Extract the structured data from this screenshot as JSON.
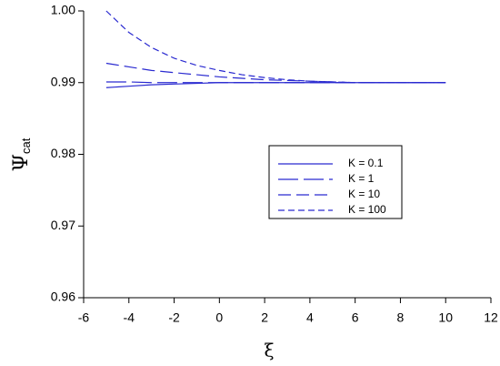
{
  "chart_data": {
    "type": "line",
    "x_label": "ξ",
    "y_label": {
      "symbol": "Ψ",
      "subscript": "cat"
    },
    "x": [
      -5,
      -4,
      -3,
      -2,
      -1,
      0,
      1,
      2,
      3,
      4,
      5,
      6,
      7,
      8,
      9,
      10
    ],
    "series": [
      {
        "name": "K = 0.1",
        "color": "#2a2ad0",
        "dash": "none",
        "values": [
          0.9893,
          0.9895,
          0.9897,
          0.9898,
          0.9899,
          0.99,
          0.99,
          0.99,
          0.99,
          0.99,
          0.99,
          0.99,
          0.99,
          0.99,
          0.99,
          0.99
        ]
      },
      {
        "name": "K = 1",
        "color": "#2a2ad0",
        "dash": "22 6",
        "values": [
          0.9901,
          0.9901,
          0.99,
          0.99,
          0.99,
          0.99,
          0.99,
          0.99,
          0.99,
          0.99,
          0.99,
          0.99,
          0.99,
          0.99,
          0.99,
          0.99
        ]
      },
      {
        "name": "K = 10",
        "color": "#2a2ad0",
        "dash": "14 6",
        "values": [
          0.9927,
          0.9922,
          0.9917,
          0.9914,
          0.9911,
          0.9908,
          0.9906,
          0.9904,
          0.9903,
          0.9902,
          0.9901,
          0.99,
          0.99,
          0.99,
          0.99,
          0.99
        ]
      },
      {
        "name": "K = 100",
        "color": "#2a2ad0",
        "dash": "7 4",
        "values": [
          1.0,
          0.997,
          0.9949,
          0.9934,
          0.9924,
          0.9917,
          0.9911,
          0.9907,
          0.9904,
          0.9902,
          0.9901,
          0.99,
          0.99,
          0.99,
          0.99,
          0.99
        ]
      }
    ],
    "xlim": [
      -6,
      12
    ],
    "xticks": [
      -6,
      -4,
      -2,
      0,
      2,
      4,
      6,
      8,
      10,
      12
    ],
    "ylim": [
      0.96,
      1.0
    ],
    "yticks": [
      0.96,
      0.97,
      0.98,
      0.99,
      {
        "value": 1.0,
        "label": "1.00"
      }
    ],
    "grid": false
  }
}
